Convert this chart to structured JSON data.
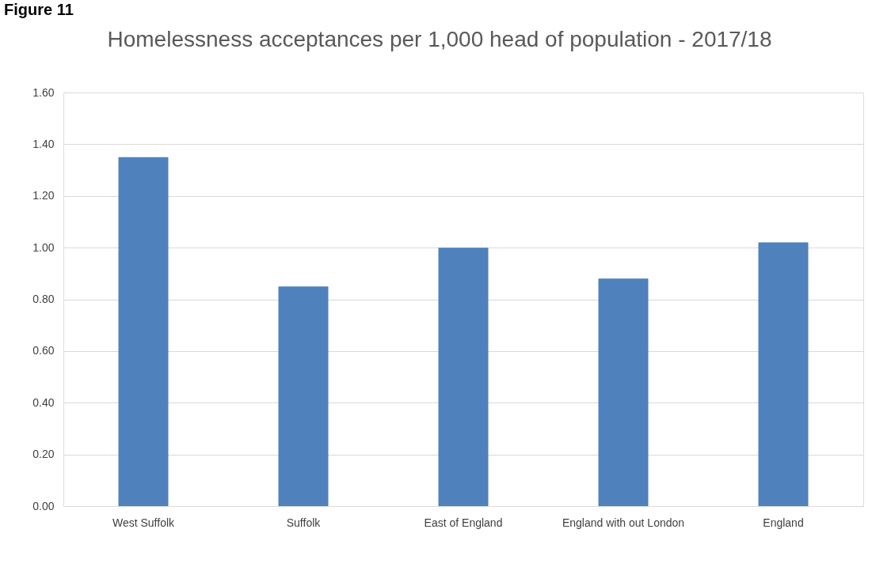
{
  "chart_data": {
    "type": "bar",
    "title": "Homelessness acceptances per 1,000 head of population - 2017/18",
    "annotations": [
      "Figure 11"
    ],
    "categories": [
      "West Suffolk",
      "Suffolk",
      "East of England",
      "England with out London",
      "England"
    ],
    "values": [
      1.35,
      0.85,
      1.0,
      0.88,
      1.02
    ],
    "color": "#4f81bd",
    "ylim": [
      0,
      1.6
    ],
    "yticks": [
      {
        "value": 0,
        "label": "0.00"
      },
      {
        "value": 0.2,
        "label": "0.20"
      },
      {
        "value": 0.4,
        "label": "0.40"
      },
      {
        "value": 0.6,
        "label": "0.60"
      },
      {
        "value": 0.8,
        "label": "0.80"
      },
      {
        "value": 1.0,
        "label": "1.00"
      },
      {
        "value": 1.2,
        "label": "1.20"
      },
      {
        "value": 1.4,
        "label": "1.40"
      },
      {
        "value": 1.6,
        "label": "1.60"
      }
    ],
    "grid": "y"
  }
}
